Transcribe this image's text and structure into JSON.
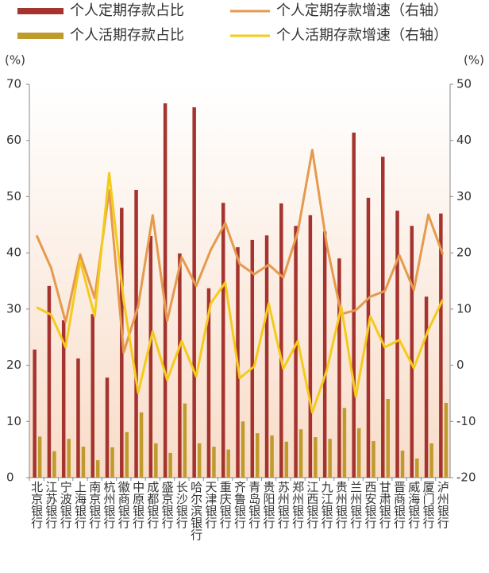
{
  "chart_data": {
    "type": "bar_line",
    "y_unit": "(%)",
    "y2_unit": "(%)",
    "categories": [
      "北京银行",
      "江苏银行",
      "宁波银行",
      "上海银行",
      "南京银行",
      "杭州银行",
      "徽商银行",
      "中原银行",
      "成都银行",
      "盛京银行",
      "长沙银行",
      "哈尔滨银行",
      "天津银行",
      "重庆银行",
      "齐鲁银行",
      "青岛银行",
      "贵阳银行",
      "苏州银行",
      "郑州银行",
      "江西银行",
      "九江银行",
      "贵州银行",
      "兰州银行",
      "西安银行",
      "甘肃银行",
      "晋商银行",
      "威海银行",
      "厦门银行",
      "泸州银行"
    ],
    "series": [
      {
        "name": "个人定期存款占比",
        "kind": "bar",
        "color": "#a5342f",
        "values": [
          22.8,
          34.1,
          28,
          21.2,
          29.1,
          17.8,
          48,
          51.2,
          43,
          66.6,
          39.9,
          65.9,
          33.7,
          48.9,
          41,
          42.3,
          43.1,
          48.8,
          44.8,
          46.7,
          43.8,
          39,
          61.4,
          49.8,
          57.1,
          47.5,
          44.8,
          32.2,
          47
        ]
      },
      {
        "name": "个人定期存款增速（右轴）",
        "kind": "line",
        "axis": "y2",
        "color": "#e59a4e",
        "values": [
          23.1,
          17.3,
          7.7,
          19.7,
          12,
          31.1,
          2.3,
          10.5,
          26.7,
          7.9,
          19.2,
          14.1,
          20.5,
          25.3,
          18,
          16.2,
          17.9,
          15.6,
          23.7,
          38.3,
          21.4,
          9.1,
          9.8,
          12.2,
          13.2,
          19.6,
          13.4,
          26.8,
          19.7
        ]
      },
      {
        "name": "个人活期存款占比",
        "kind": "bar",
        "color": "#bf9a2c",
        "values": [
          7.3,
          4.7,
          6.9,
          5.5,
          3.1,
          5.4,
          8.1,
          11.6,
          6.1,
          4.4,
          13.2,
          6.1,
          5.5,
          5,
          10,
          7.9,
          7.5,
          6.4,
          8.6,
          7.2,
          6.9,
          12.4,
          8.8,
          6.5,
          14,
          4.8,
          3.4,
          6.1,
          13.3
        ]
      },
      {
        "name": "个人活期存款增速（右轴）",
        "kind": "line",
        "axis": "y2",
        "color": "#f4cb1c",
        "values": [
          10.3,
          9,
          3.2,
          18.6,
          8.7,
          34.2,
          11.5,
          -4.9,
          6,
          -2.6,
          4.3,
          -2,
          11,
          14.7,
          -2.3,
          -0.2,
          11,
          -0.6,
          4.3,
          -8.4,
          -0.9,
          10.4,
          -5.6,
          8.7,
          3.2,
          4.5,
          -0.5,
          6.3,
          11.7
        ]
      }
    ],
    "ylim": [
      0,
      70
    ],
    "yticks": [
      0,
      10,
      20,
      30,
      40,
      50,
      60,
      70
    ],
    "y2lim": [
      -20,
      50
    ],
    "y2ticks": [
      -20,
      -10,
      0,
      10,
      20,
      30,
      40,
      50
    ]
  }
}
